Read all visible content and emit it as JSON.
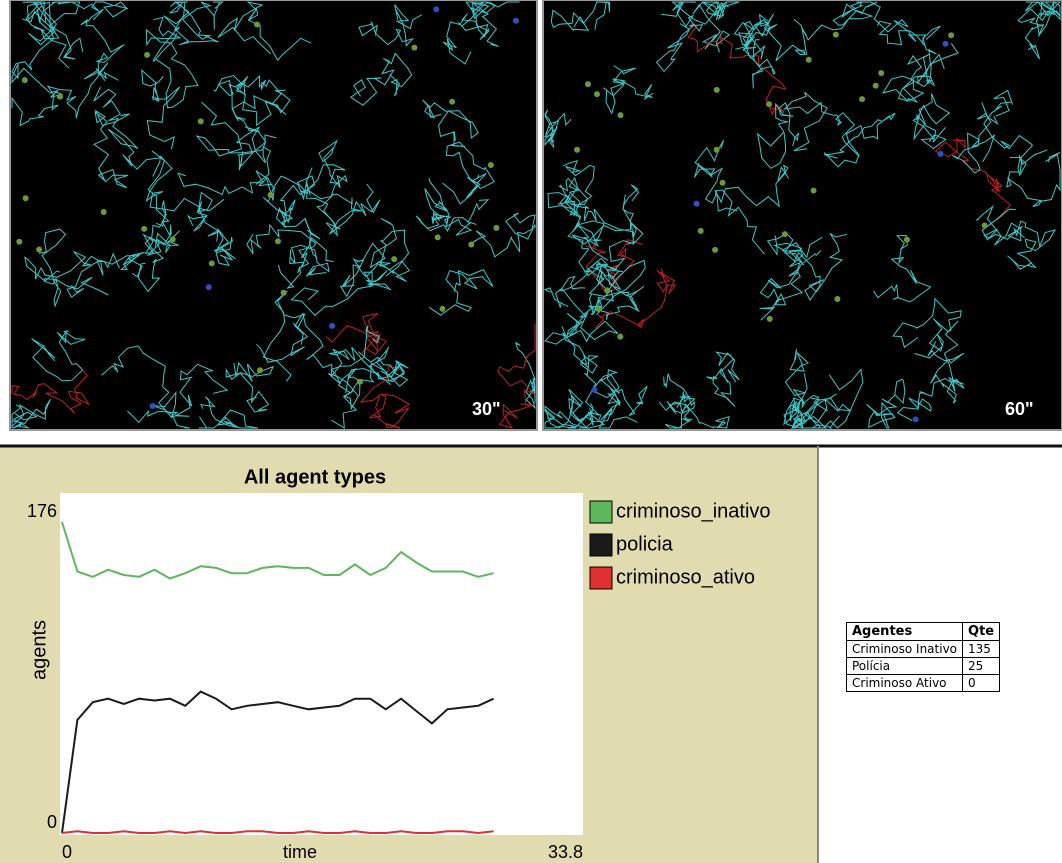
{
  "panels": [
    {
      "label": "30\""
    },
    {
      "label": "60\""
    }
  ],
  "chart_data": {
    "type": "line",
    "title": "All agent types",
    "x_label": "time",
    "y_label": "agents",
    "x": [
      0,
      1,
      2,
      3,
      4,
      5,
      6,
      7,
      8,
      9,
      10,
      11,
      12,
      13,
      14,
      15,
      16,
      17,
      18,
      19,
      20,
      21,
      22,
      23,
      24,
      25,
      26,
      27,
      28
    ],
    "series": [
      {
        "name": "criminoso_inativo",
        "color": "#5cb85c",
        "values": [
          176,
          148,
          145,
          149,
          146,
          145,
          149,
          144,
          147,
          151,
          150,
          147,
          147,
          150,
          151,
          150,
          150,
          146,
          146,
          152,
          146,
          150,
          159,
          153,
          148,
          148,
          148,
          145,
          147
        ]
      },
      {
        "name": "policia",
        "color": "#1a1a1a",
        "values": [
          0,
          64,
          74,
          76,
          73,
          76,
          75,
          76,
          72,
          80,
          76,
          70,
          72,
          73,
          74,
          72,
          70,
          71,
          72,
          76,
          76,
          70,
          76,
          69,
          62,
          70,
          71,
          72,
          76
        ]
      },
      {
        "name": "criminoso_ativo",
        "color": "#e03030",
        "values": [
          0,
          1,
          0,
          0,
          1,
          0,
          0,
          1,
          0,
          1,
          0,
          0,
          1,
          1,
          0,
          0,
          1,
          0,
          0,
          1,
          0,
          0,
          1,
          0,
          0,
          1,
          1,
          0,
          1
        ]
      }
    ],
    "xlim": [
      0,
      33.8
    ],
    "xticks": [
      0,
      33.8
    ],
    "ylim": [
      0,
      176
    ],
    "yticks": [
      0,
      176
    ]
  },
  "table": {
    "header": [
      "Agentes",
      "Qte"
    ],
    "rows": [
      [
        "Criminoso Inativo",
        "135"
      ],
      [
        "Polícia",
        "25"
      ],
      [
        "Criminoso Ativo",
        "0"
      ]
    ]
  }
}
